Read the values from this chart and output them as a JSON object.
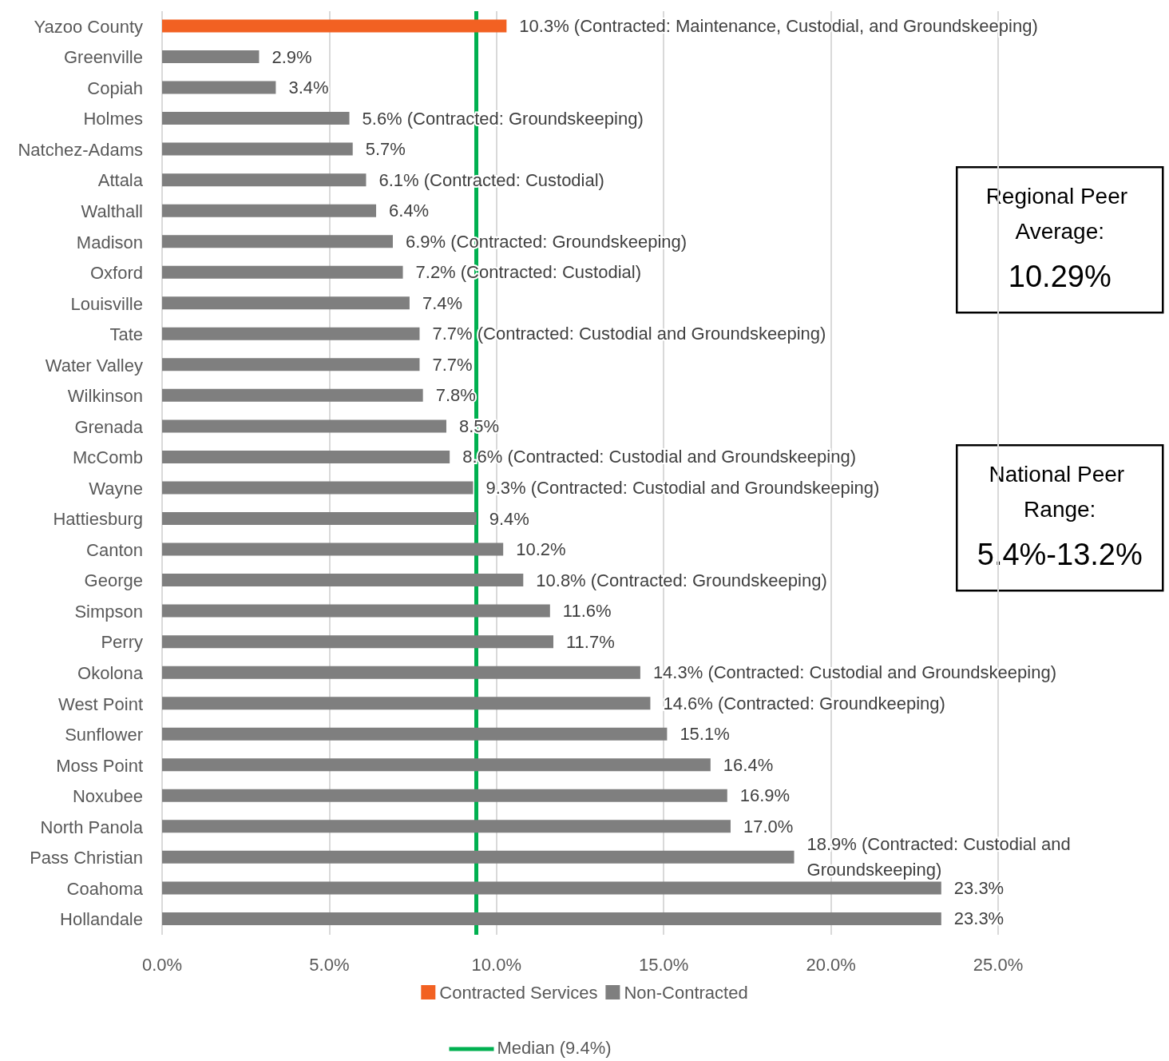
{
  "chart_data": {
    "type": "bar",
    "orientation": "horizontal",
    "stacked": true,
    "categories": [
      "Yazoo County",
      "Greenville",
      "Copiah",
      "Holmes",
      "Natchez-Adams",
      "Attala",
      "Walthall",
      "Madison",
      "Oxford",
      "Louisville",
      "Tate",
      "Water Valley",
      "Wilkinson",
      "Grenada",
      "McComb",
      "Wayne",
      "Hattiesburg",
      "Canton",
      "George",
      "Simpson",
      "Perry",
      "Okolona",
      "West Point",
      "Sunflower",
      "Moss Point",
      "Noxubee",
      "North Panola",
      "Pass Christian",
      "Coahoma",
      "Hollandale"
    ],
    "series": [
      {
        "name": "Contracted Services",
        "color": "#f26122",
        "values": [
          10.3,
          null,
          null,
          null,
          null,
          null,
          null,
          null,
          null,
          null,
          null,
          null,
          null,
          null,
          null,
          null,
          null,
          null,
          null,
          null,
          null,
          null,
          null,
          null,
          null,
          null,
          null,
          null,
          null,
          null
        ],
        "value_labels": [
          "10.3% (Contracted: Maintenance, Custodial, and Groundskeeping)",
          null,
          null,
          null,
          null,
          null,
          null,
          null,
          null,
          null,
          null,
          null,
          null,
          null,
          null,
          null,
          null,
          null,
          null,
          null,
          null,
          null,
          null,
          null,
          null,
          null,
          null,
          null,
          null,
          null
        ]
      },
      {
        "name": "Non-Contracted",
        "color": "#7f7f7f",
        "values": [
          null,
          2.9,
          3.4,
          5.6,
          5.7,
          6.1,
          6.4,
          6.9,
          7.2,
          7.4,
          7.7,
          7.7,
          7.8,
          8.5,
          8.6,
          9.3,
          9.4,
          10.2,
          10.8,
          11.6,
          11.7,
          14.3,
          14.6,
          15.1,
          16.4,
          16.9,
          17.0,
          18.9,
          23.3,
          23.3
        ],
        "value_labels": [
          null,
          "2.9%",
          "3.4%",
          "5.6% (Contracted: Groundskeeping)",
          "5.7%",
          "6.1% (Contracted: Custodial)",
          "6.4%",
          "6.9% (Contracted: Groundskeeping)",
          "7.2% (Contracted: Custodial)",
          "7.4%",
          "7.7% (Contracted: Custodial and Groundskeeping)",
          "7.7%",
          "7.8%",
          "8.5%",
          "8.6% (Contracted: Custodial and Groundskeeping)",
          "9.3% (Contracted: Custodial and Groundskeeping)",
          "9.4%",
          "10.2%",
          "10.8% (Contracted: Groundskeeping)",
          "11.6%",
          "11.7%",
          "14.3% (Contracted: Custodial and Groundskeeping)",
          "14.6% (Contracted: Groundkeeping)",
          "15.1%",
          "16.4%",
          "16.9%",
          "17.0%",
          "18.9% (Contracted: Custodial and Groundskeeping)",
          "23.3%",
          "23.3%"
        ]
      }
    ],
    "xlim": [
      0,
      25
    ],
    "xticks": [
      {
        "value": 0,
        "label": "0.0%"
      },
      {
        "value": 5,
        "label": "5.0%"
      },
      {
        "value": 10,
        "label": "10.0%"
      },
      {
        "value": 15,
        "label": "15.0%"
      },
      {
        "value": 20,
        "label": "20.0%"
      },
      {
        "value": 25,
        "label": "25.0%"
      }
    ],
    "grid": "x",
    "legend": "bottom",
    "ref_lines": [
      {
        "axis": "x",
        "value": 9.4,
        "label": "Median (9.4%)",
        "color": "#00b050",
        "line_style": "solid"
      }
    ],
    "annotations": [
      "Regional Peer Average:",
      "10.29%",
      "National Peer Range:",
      "5.4%-13.2%"
    ]
  }
}
